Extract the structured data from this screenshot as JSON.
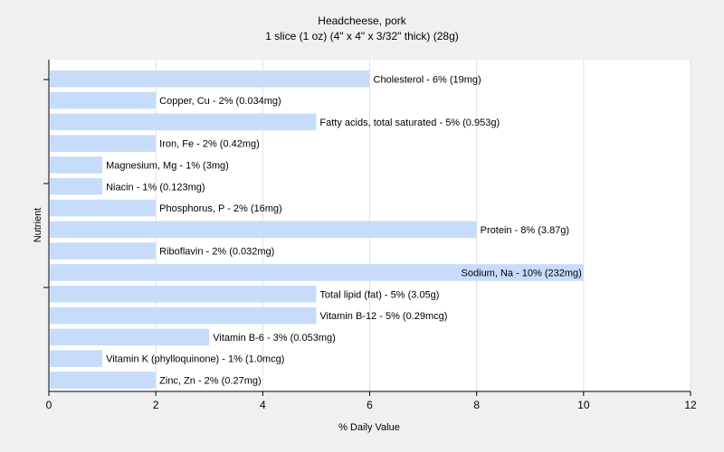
{
  "chart_data": {
    "type": "bar",
    "orientation": "horizontal",
    "title": "Headcheese, pork",
    "subtitle": "1 slice (1 oz) (4\" x 4\" x 3/32\" thick) (28g)",
    "xlabel": "% Daily Value",
    "ylabel": "Nutrient",
    "xlim": [
      0,
      12
    ],
    "xticks": [
      "0",
      "2",
      "4",
      "6",
      "8",
      "10",
      "12"
    ],
    "grid": true,
    "colors": {
      "bar": "#c6dcfa",
      "plot_bg": "#ffffff",
      "page_bg": "#f0f0f0",
      "grid": "#e2e2e2"
    },
    "categories": [
      "Cholesterol",
      "Copper, Cu",
      "Fatty acids, total saturated",
      "Iron, Fe",
      "Magnesium, Mg",
      "Niacin",
      "Phosphorus, P",
      "Protein",
      "Riboflavin",
      "Sodium, Na",
      "Total lipid (fat)",
      "Vitamin B-12",
      "Vitamin B-6",
      "Vitamin K (phylloquinone)",
      "Zinc, Zn"
    ],
    "values": [
      6,
      2,
      5,
      2,
      1,
      1,
      2,
      8,
      2,
      10,
      5,
      5,
      3,
      1,
      2
    ],
    "labels": [
      "Cholesterol - 6% (19mg)",
      "Copper, Cu - 2% (0.034mg)",
      "Fatty acids, total saturated - 5% (0.953g)",
      "Iron, Fe - 2% (0.42mg)",
      "Magnesium, Mg - 1% (3mg)",
      "Niacin - 1% (0.123mg)",
      "Phosphorus, P - 2% (16mg)",
      "Protein - 8% (3.87g)",
      "Riboflavin - 2% (0.032mg)",
      "Sodium, Na - 10% (232mg)",
      "Total lipid (fat) - 5% (3.05g)",
      "Vitamin B-12 - 5% (0.29mcg)",
      "Vitamin B-6 - 3% (0.053mg)",
      "Vitamin K (phylloquinone) - 1% (1.0mcg)",
      "Zinc, Zn - 2% (0.27mg)"
    ]
  }
}
